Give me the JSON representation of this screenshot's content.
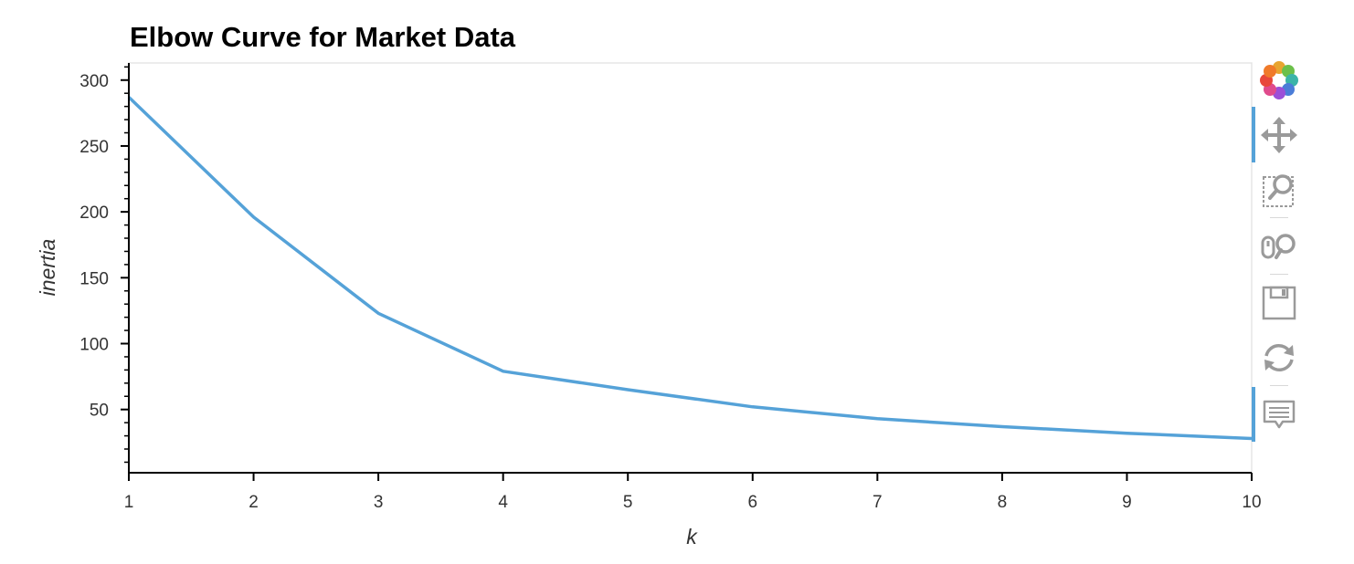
{
  "chart_data": {
    "type": "line",
    "title": "Elbow Curve for Market Data",
    "xlabel": "k",
    "ylabel": "inertia",
    "x": [
      1,
      2,
      3,
      4,
      5,
      6,
      7,
      8,
      9,
      10
    ],
    "series": [
      {
        "values": [
          287,
          196,
          123,
          79,
          65,
          52,
          43,
          37,
          32,
          28
        ],
        "color": "#55a2d8"
      }
    ],
    "xlim": [
      1,
      10
    ],
    "ylim": [
      2,
      313
    ],
    "xticks": [
      "1",
      "2",
      "3",
      "4",
      "5",
      "6",
      "7",
      "8",
      "9",
      "10"
    ],
    "yticks": [
      "50",
      "100",
      "150",
      "200",
      "250",
      "300"
    ],
    "grid": false,
    "legend": "none"
  },
  "toolbar": {
    "tools": [
      {
        "icon": "bokeh-logo-icon"
      },
      {
        "icon": "pan-icon",
        "active": true
      },
      {
        "icon": "box-zoom-icon"
      },
      {
        "icon": "wheel-zoom-icon"
      },
      {
        "icon": "save-icon"
      },
      {
        "icon": "reset-icon"
      },
      {
        "icon": "hover-icon",
        "active": true
      }
    ]
  }
}
